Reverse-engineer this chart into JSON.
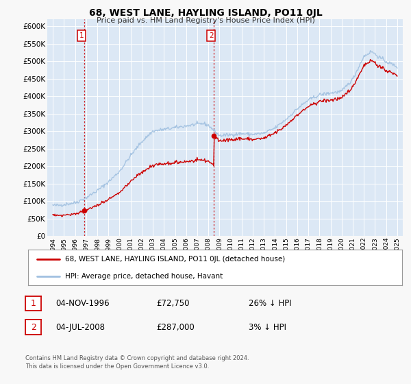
{
  "title": "68, WEST LANE, HAYLING ISLAND, PO11 0JL",
  "subtitle": "Price paid vs. HM Land Registry's House Price Index (HPI)",
  "ylim": [
    0,
    600000
  ],
  "yticks": [
    0,
    50000,
    100000,
    150000,
    200000,
    250000,
    300000,
    350000,
    400000,
    450000,
    500000,
    550000,
    600000
  ],
  "bg_color": "#dce8f5",
  "grid_color": "#ffffff",
  "sale1_date": 1996.84,
  "sale1_price": 72750,
  "sale2_date": 2008.5,
  "sale2_price": 287000,
  "red_line_color": "#cc0000",
  "blue_line_color": "#a0c0e0",
  "legend_label1": "68, WEST LANE, HAYLING ISLAND, PO11 0JL (detached house)",
  "legend_label2": "HPI: Average price, detached house, Havant",
  "annotation1_date": "04-NOV-1996",
  "annotation1_price": "£72,750",
  "annotation1_hpi": "26% ↓ HPI",
  "annotation2_date": "04-JUL-2008",
  "annotation2_price": "£287,000",
  "annotation2_hpi": "3% ↓ HPI",
  "footer": "Contains HM Land Registry data © Crown copyright and database right 2024.\nThis data is licensed under the Open Government Licence v3.0."
}
